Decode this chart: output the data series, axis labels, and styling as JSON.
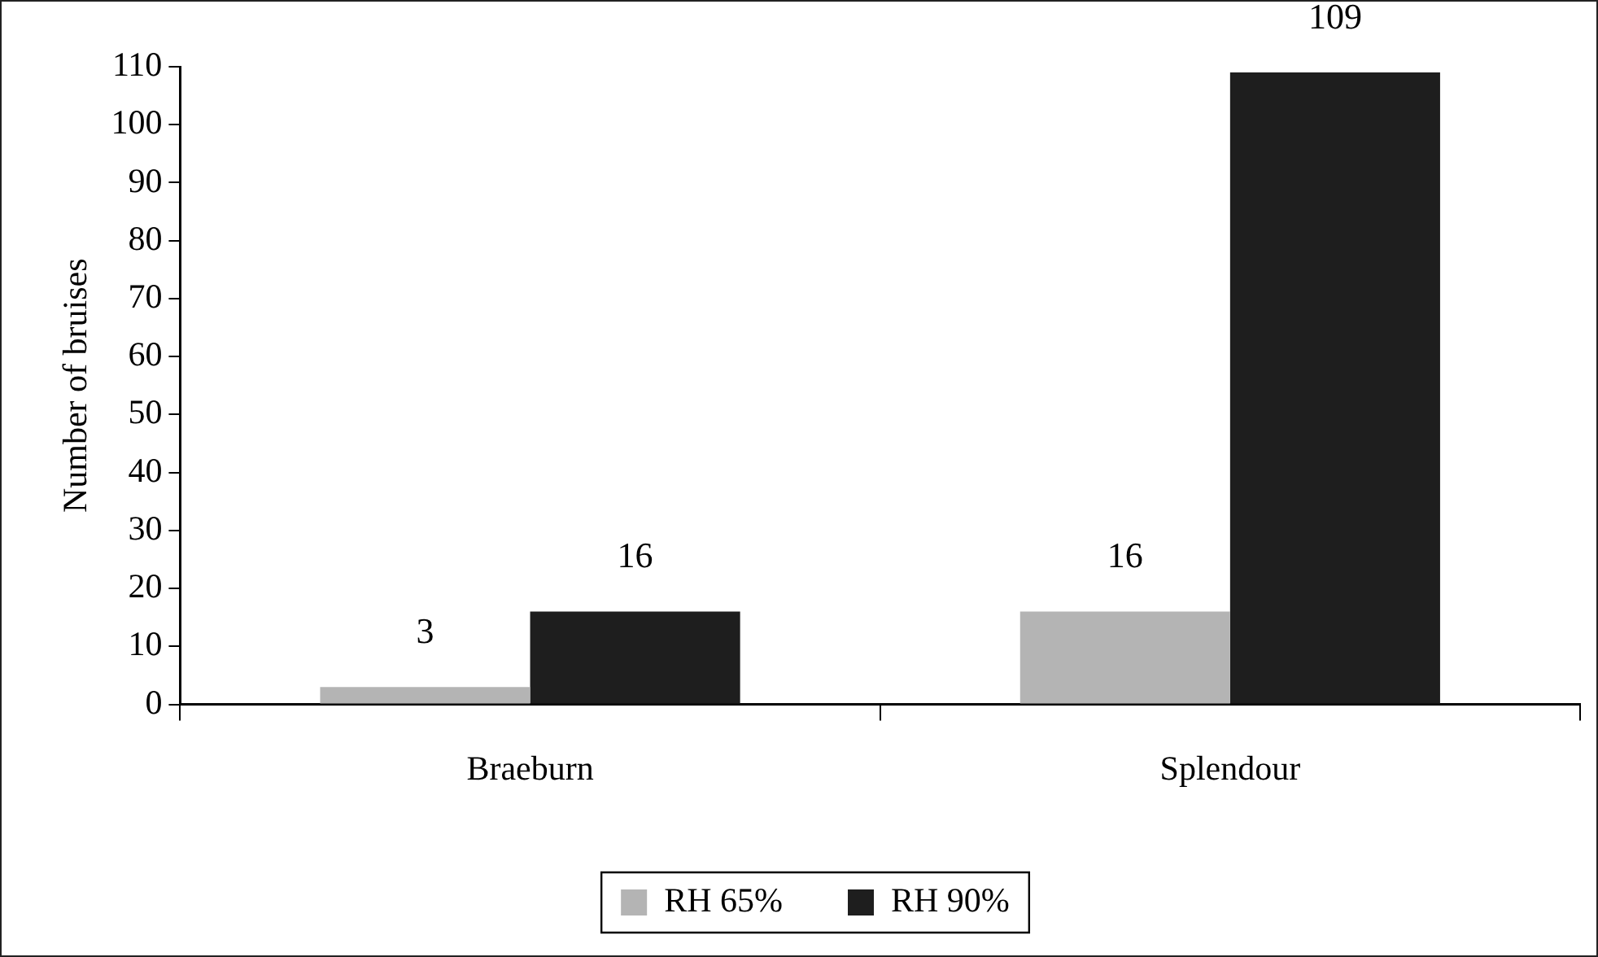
{
  "chart_data": {
    "type": "bar",
    "ylabel": "Number of bruises",
    "categories": [
      "Braeburn",
      "Splendour"
    ],
    "series": [
      {
        "name": "RH 65%",
        "color": "#b4b4b4",
        "values": [
          3,
          16
        ]
      },
      {
        "name": "RH 90%",
        "color": "#1e1e1e",
        "values": [
          16,
          109
        ]
      }
    ],
    "ylim": [
      0,
      110
    ],
    "yticks": [
      0,
      10,
      20,
      30,
      40,
      50,
      60,
      70,
      80,
      90,
      100,
      110
    ],
    "grid": false,
    "legend": "bottom",
    "data_labels": true
  }
}
